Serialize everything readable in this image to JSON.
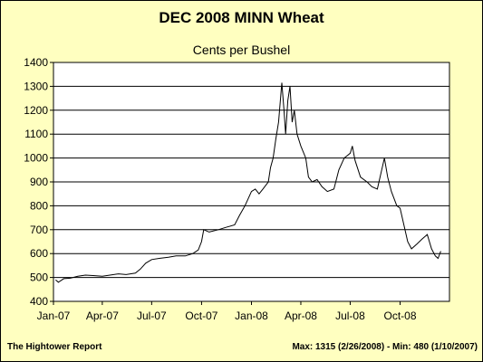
{
  "chart_data": {
    "type": "line",
    "title": "DEC 2008 MINN Wheat",
    "subtitle": "Cents per Bushel",
    "xlabel": "",
    "ylabel": "",
    "ylim": [
      400,
      1400
    ],
    "yticks": [
      400,
      500,
      600,
      700,
      800,
      900,
      1000,
      1100,
      1200,
      1300,
      1400
    ],
    "xlim": [
      "2007-01-01",
      "2008-12-31"
    ],
    "xticks": [
      {
        "date": "2007-01-01",
        "label": "Jan-07"
      },
      {
        "date": "2007-04-01",
        "label": "Apr-07"
      },
      {
        "date": "2007-07-01",
        "label": "Jul-07"
      },
      {
        "date": "2007-10-01",
        "label": "Oct-07"
      },
      {
        "date": "2008-01-01",
        "label": "Jan-08"
      },
      {
        "date": "2008-04-01",
        "label": "Apr-08"
      },
      {
        "date": "2008-07-01",
        "label": "Jul-08"
      },
      {
        "date": "2008-10-01",
        "label": "Oct-08"
      }
    ],
    "grid": "horizontal",
    "series": [
      {
        "color": "#000000",
        "points": [
          [
            "2007-01-05",
            490
          ],
          [
            "2007-01-10",
            480
          ],
          [
            "2007-01-20",
            495
          ],
          [
            "2007-02-01",
            497
          ],
          [
            "2007-02-15",
            505
          ],
          [
            "2007-03-01",
            510
          ],
          [
            "2007-03-15",
            508
          ],
          [
            "2007-04-01",
            505
          ],
          [
            "2007-04-15",
            510
          ],
          [
            "2007-05-01",
            515
          ],
          [
            "2007-05-15",
            512
          ],
          [
            "2007-06-01",
            518
          ],
          [
            "2007-06-10",
            535
          ],
          [
            "2007-06-20",
            560
          ],
          [
            "2007-07-01",
            575
          ],
          [
            "2007-07-15",
            580
          ],
          [
            "2007-08-01",
            585
          ],
          [
            "2007-08-15",
            590
          ],
          [
            "2007-09-01",
            590
          ],
          [
            "2007-09-15",
            600
          ],
          [
            "2007-09-25",
            615
          ],
          [
            "2007-10-01",
            650
          ],
          [
            "2007-10-05",
            700
          ],
          [
            "2007-10-15",
            690
          ],
          [
            "2007-11-01",
            700
          ],
          [
            "2007-11-15",
            710
          ],
          [
            "2007-12-01",
            720
          ],
          [
            "2007-12-10",
            760
          ],
          [
            "2007-12-20",
            800
          ],
          [
            "2008-01-01",
            860
          ],
          [
            "2008-01-08",
            870
          ],
          [
            "2008-01-15",
            850
          ],
          [
            "2008-01-22",
            870
          ],
          [
            "2008-02-01",
            900
          ],
          [
            "2008-02-05",
            960
          ],
          [
            "2008-02-10",
            1000
          ],
          [
            "2008-02-15",
            1080
          ],
          [
            "2008-02-20",
            1150
          ],
          [
            "2008-02-26",
            1315
          ],
          [
            "2008-03-01",
            1200
          ],
          [
            "2008-03-04",
            1100
          ],
          [
            "2008-03-08",
            1240
          ],
          [
            "2008-03-12",
            1300
          ],
          [
            "2008-03-16",
            1150
          ],
          [
            "2008-03-20",
            1200
          ],
          [
            "2008-03-25",
            1100
          ],
          [
            "2008-04-01",
            1050
          ],
          [
            "2008-04-10",
            1000
          ],
          [
            "2008-04-15",
            920
          ],
          [
            "2008-04-22",
            900
          ],
          [
            "2008-05-01",
            910
          ],
          [
            "2008-05-10",
            880
          ],
          [
            "2008-05-20",
            860
          ],
          [
            "2008-06-01",
            870
          ],
          [
            "2008-06-10",
            950
          ],
          [
            "2008-06-20",
            1000
          ],
          [
            "2008-07-01",
            1020
          ],
          [
            "2008-07-05",
            1050
          ],
          [
            "2008-07-10",
            990
          ],
          [
            "2008-07-20",
            920
          ],
          [
            "2008-08-01",
            900
          ],
          [
            "2008-08-10",
            880
          ],
          [
            "2008-08-20",
            870
          ],
          [
            "2008-08-28",
            950
          ],
          [
            "2008-09-02",
            1000
          ],
          [
            "2008-09-08",
            920
          ],
          [
            "2008-09-15",
            860
          ],
          [
            "2008-09-25",
            800
          ],
          [
            "2008-10-01",
            790
          ],
          [
            "2008-10-08",
            720
          ],
          [
            "2008-10-15",
            650
          ],
          [
            "2008-10-22",
            620
          ],
          [
            "2008-11-01",
            640
          ],
          [
            "2008-11-10",
            660
          ],
          [
            "2008-11-20",
            680
          ],
          [
            "2008-11-28",
            620
          ],
          [
            "2008-12-05",
            590
          ],
          [
            "2008-12-10",
            580
          ],
          [
            "2008-12-15",
            610
          ]
        ]
      }
    ]
  },
  "footer": {
    "source": "The Hightower Report",
    "stats": "Max: 1315 (2/26/2008)  -  Min: 480 (1/10/2007)"
  },
  "colors": {
    "background": "#ffffc0",
    "plot_background": "#ffffff",
    "line": "#000000",
    "grid": "#000000"
  }
}
